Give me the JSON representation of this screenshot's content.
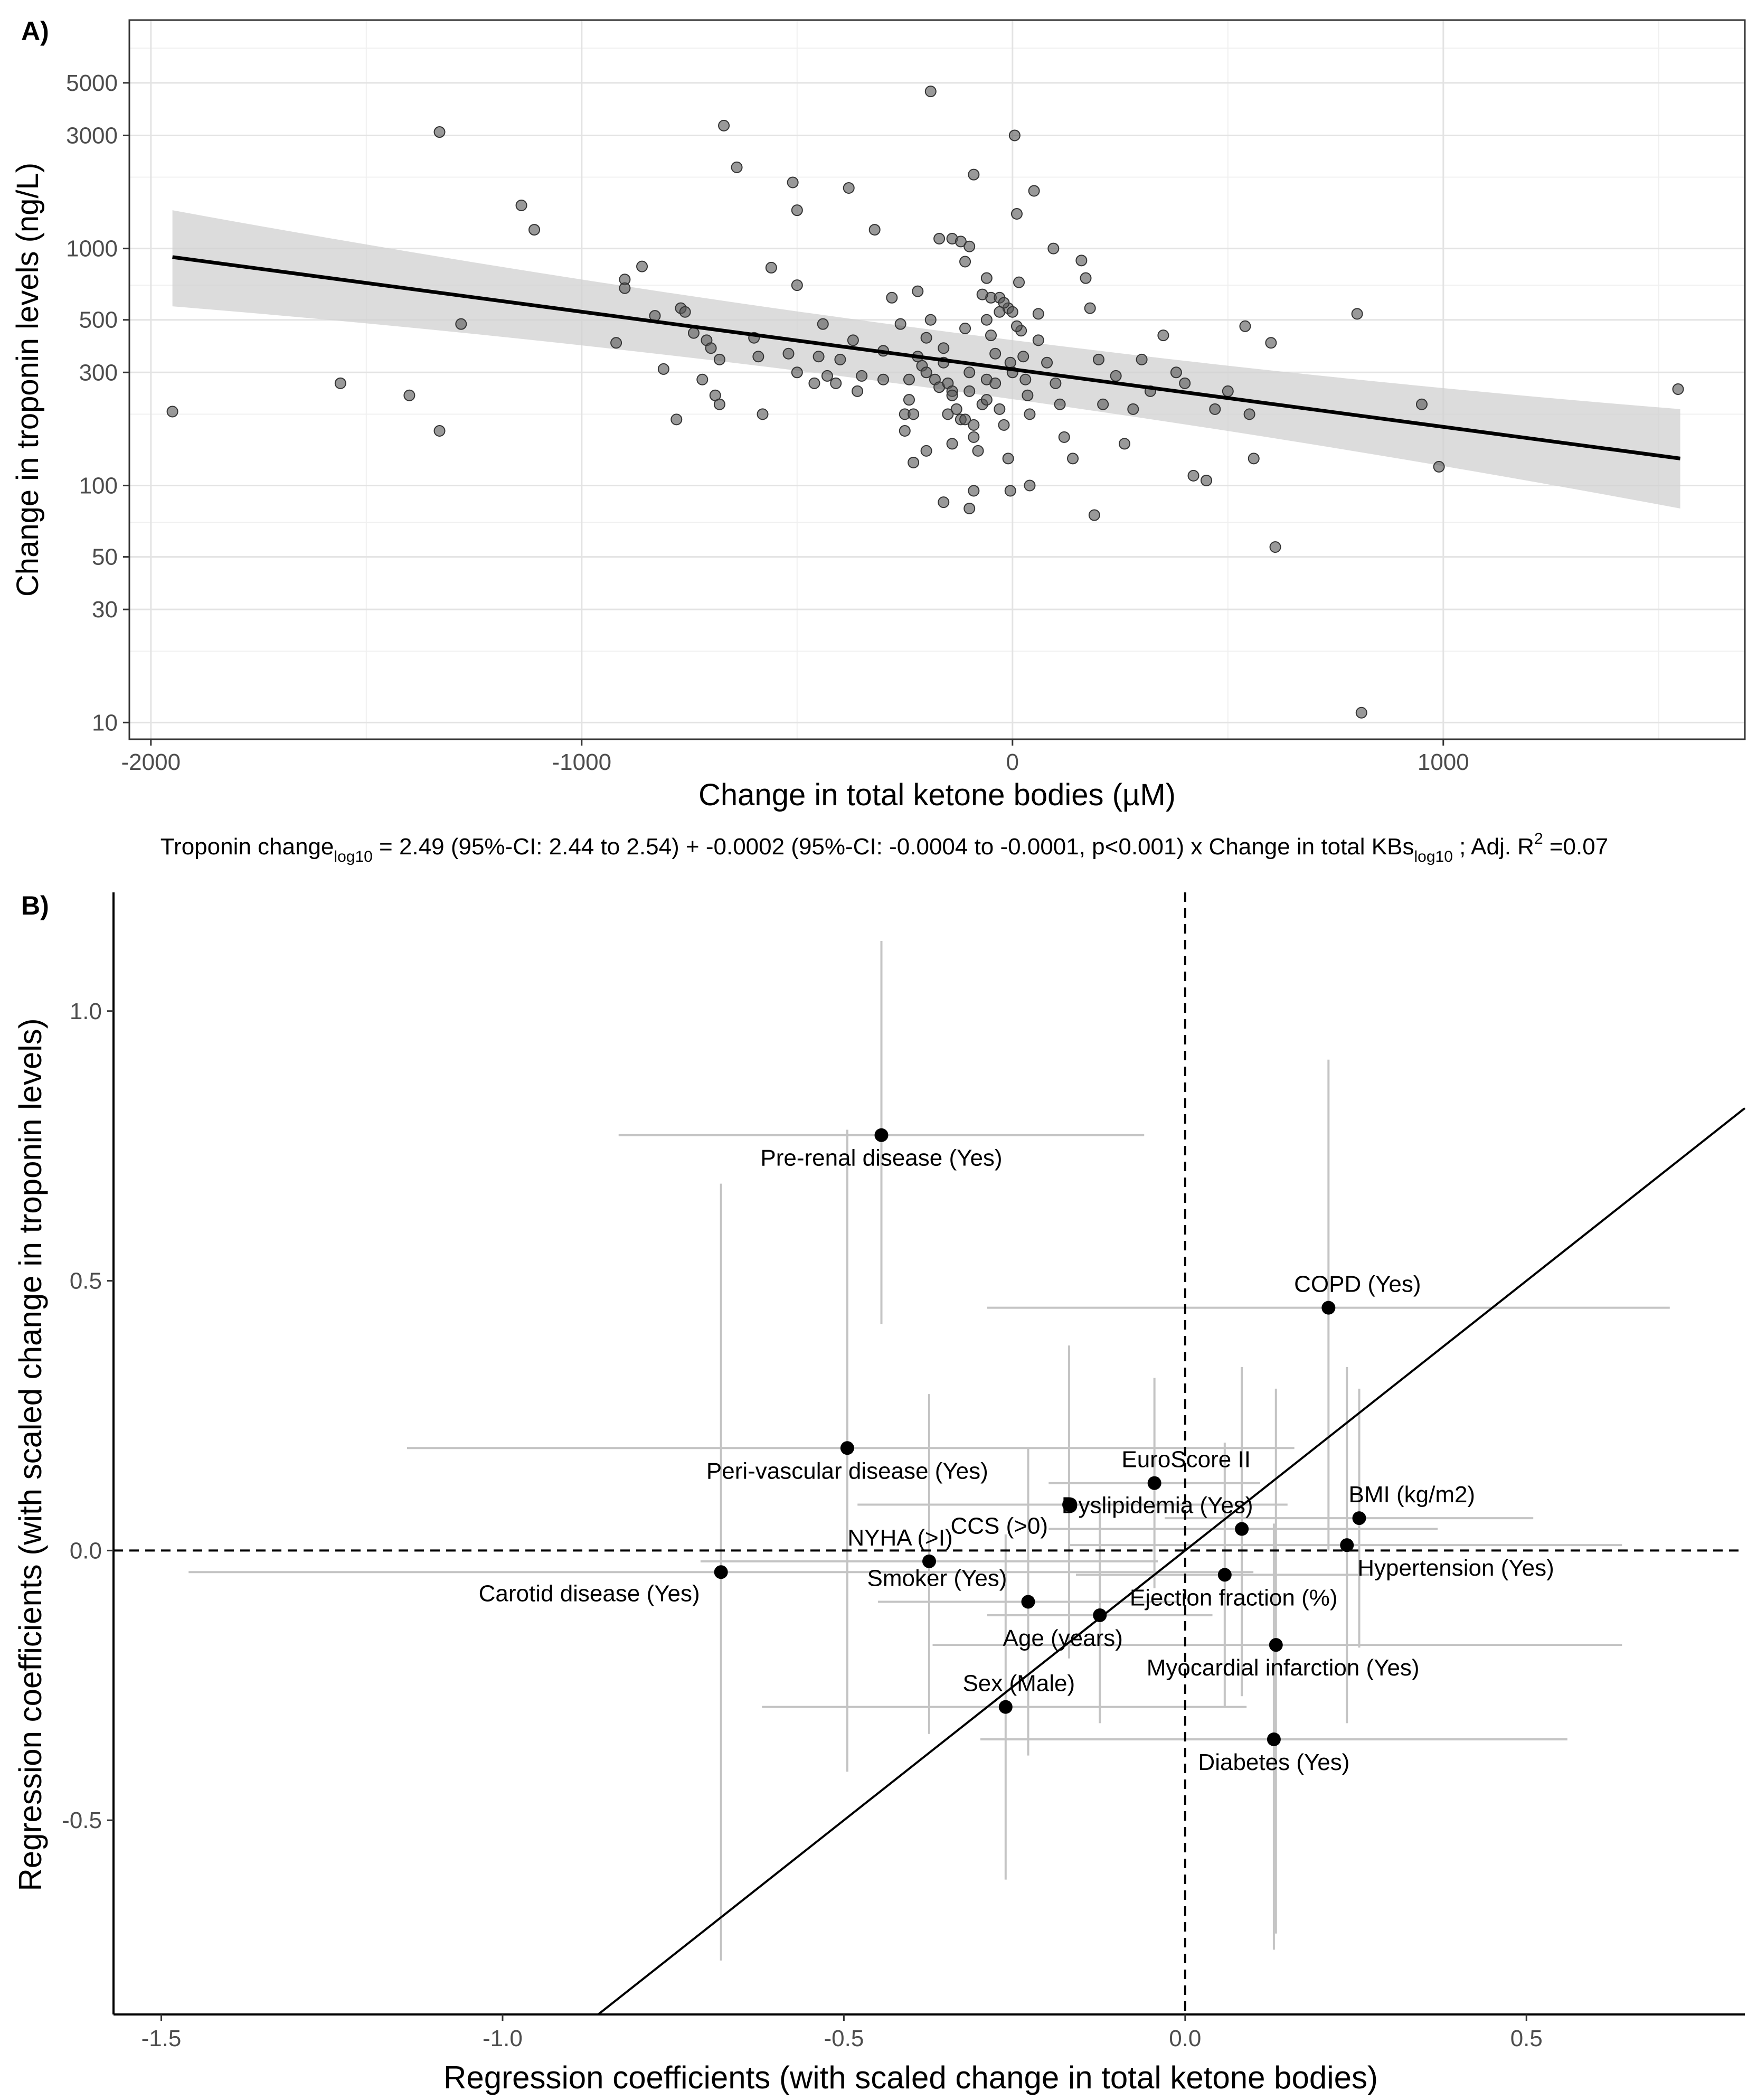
{
  "chart_data": [
    {
      "panel_label": "A)",
      "type": "scatter",
      "xlabel": "Change in total ketone bodies (µM)",
      "ylabel": "Change in troponin levels (ng/L)",
      "y_scale": "log10",
      "xlim": [
        -2050,
        1700
      ],
      "ylim": [
        8.5,
        9200
      ],
      "x_ticks": [
        -2000,
        -1000,
        0,
        1000
      ],
      "x_tick_labels": [
        "-2000",
        "-1000",
        "0",
        "1000"
      ],
      "y_ticks": [
        10,
        30,
        50,
        100,
        300,
        500,
        1000,
        3000,
        5000
      ],
      "y_tick_labels": [
        "10",
        "30",
        "50",
        "100",
        "300",
        "500",
        "1000",
        "3000",
        "5000"
      ],
      "regression": {
        "x": [
          -1950,
          1550
        ],
        "y": [
          920,
          130
        ],
        "ci_lower": [
          570,
          80
        ],
        "ci_upper": [
          1450,
          210
        ]
      },
      "points": [
        [
          -1950,
          205
        ],
        [
          -1400,
          240
        ],
        [
          -1330,
          3100
        ],
        [
          -1330,
          170
        ],
        [
          -1280,
          480
        ],
        [
          -1140,
          1520
        ],
        [
          -1110,
          1200
        ],
        [
          -920,
          400
        ],
        [
          -900,
          740
        ],
        [
          -900,
          680
        ],
        [
          -860,
          840
        ],
        [
          -830,
          520
        ],
        [
          -810,
          310
        ],
        [
          -780,
          190
        ],
        [
          -770,
          560
        ],
        [
          -760,
          540
        ],
        [
          -740,
          440
        ],
        [
          -720,
          280
        ],
        [
          -710,
          410
        ],
        [
          -700,
          380
        ],
        [
          -690,
          240
        ],
        [
          -680,
          220
        ],
        [
          -680,
          340
        ],
        [
          -670,
          3300
        ],
        [
          -640,
          2200
        ],
        [
          -600,
          420
        ],
        [
          -590,
          350
        ],
        [
          -580,
          200
        ],
        [
          -560,
          830
        ],
        [
          -520,
          360
        ],
        [
          -510,
          1900
        ],
        [
          -500,
          1450
        ],
        [
          -500,
          700
        ],
        [
          -500,
          300
        ],
        [
          -460,
          270
        ],
        [
          -450,
          350
        ],
        [
          -440,
          480
        ],
        [
          -430,
          290
        ],
        [
          -410,
          270
        ],
        [
          -400,
          340
        ],
        [
          -380,
          1800
        ],
        [
          -370,
          410
        ],
        [
          -360,
          250
        ],
        [
          -350,
          290
        ],
        [
          -320,
          1200
        ],
        [
          -300,
          370
        ],
        [
          -300,
          280
        ],
        [
          -280,
          620
        ],
        [
          -260,
          480
        ],
        [
          -250,
          200
        ],
        [
          -250,
          170
        ],
        [
          -240,
          280
        ],
        [
          -240,
          230
        ],
        [
          -230,
          200
        ],
        [
          -220,
          660
        ],
        [
          -220,
          350
        ],
        [
          -210,
          320
        ],
        [
          -200,
          300
        ],
        [
          -200,
          140
        ],
        [
          -190,
          4600
        ],
        [
          -190,
          500
        ],
        [
          -180,
          280
        ],
        [
          -170,
          260
        ],
        [
          -160,
          380
        ],
        [
          -160,
          330
        ],
        [
          -150,
          270
        ],
        [
          -140,
          250
        ],
        [
          -140,
          240
        ],
        [
          -130,
          210
        ],
        [
          -120,
          190
        ],
        [
          -110,
          460
        ],
        [
          -100,
          300
        ],
        [
          -100,
          250
        ],
        [
          -90,
          180
        ],
        [
          -90,
          160
        ],
        [
          -80,
          140
        ],
        [
          -70,
          220
        ],
        [
          -60,
          280
        ],
        [
          -60,
          500
        ],
        [
          -50,
          620
        ],
        [
          -50,
          430
        ],
        [
          -40,
          360
        ],
        [
          -40,
          270
        ],
        [
          -30,
          210
        ],
        [
          -20,
          180
        ],
        [
          -10,
          560
        ],
        [
          -5,
          330
        ],
        [
          0,
          300
        ],
        [
          5,
          3000
        ],
        [
          10,
          1400
        ],
        [
          15,
          720
        ],
        [
          20,
          450
        ],
        [
          25,
          350
        ],
        [
          30,
          280
        ],
        [
          35,
          240
        ],
        [
          40,
          200
        ],
        [
          50,
          1750
        ],
        [
          60,
          530
        ],
        [
          80,
          330
        ],
        [
          100,
          270
        ],
        [
          110,
          220
        ],
        [
          120,
          160
        ],
        [
          140,
          130
        ],
        [
          160,
          890
        ],
        [
          170,
          750
        ],
        [
          180,
          560
        ],
        [
          200,
          340
        ],
        [
          210,
          220
        ],
        [
          240,
          290
        ],
        [
          260,
          150
        ],
        [
          280,
          210
        ],
        [
          300,
          340
        ],
        [
          320,
          250
        ],
        [
          350,
          430
        ],
        [
          380,
          300
        ],
        [
          400,
          270
        ],
        [
          420,
          110
        ],
        [
          450,
          105
        ],
        [
          470,
          210
        ],
        [
          500,
          250
        ],
        [
          540,
          470
        ],
        [
          550,
          200
        ],
        [
          560,
          130
        ],
        [
          600,
          400
        ],
        [
          610,
          55
        ],
        [
          800,
          530
        ],
        [
          810,
          11
        ],
        [
          950,
          220
        ],
        [
          990,
          120
        ],
        [
          1545,
          255
        ],
        [
          -1560,
          270
        ],
        [
          -160,
          85
        ],
        [
          -140,
          1100
        ],
        [
          -120,
          1070
        ],
        [
          -110,
          880
        ],
        [
          -100,
          1020
        ],
        [
          -90,
          2050
        ],
        [
          -70,
          640
        ],
        [
          -30,
          620
        ],
        [
          -20,
          590
        ],
        [
          0,
          540
        ],
        [
          10,
          470
        ],
        [
          -10,
          130
        ],
        [
          -5,
          95
        ],
        [
          40,
          100
        ],
        [
          -100,
          80
        ],
        [
          -90,
          95
        ],
        [
          190,
          75
        ],
        [
          95,
          1000
        ],
        [
          -110,
          190
        ],
        [
          -60,
          750
        ],
        [
          -200,
          420
        ],
        [
          -150,
          200
        ],
        [
          -230,
          125
        ],
        [
          -60,
          230
        ],
        [
          -140,
          150
        ],
        [
          -170,
          1100
        ],
        [
          -30,
          540
        ],
        [
          60,
          410
        ]
      ],
      "caption_parts": {
        "p1": "Troponin change",
        "sub1": "log10",
        "p2": " = 2.49 (95%-CI: 2.44 to 2.54) + -0.0002 (95%-CI: -0.0004 to -0.0001, p<0.001) x Change in total KBs",
        "sub2": "log10",
        "p3": " ; Adj. R",
        "sup": "2",
        "p4": " =0.07"
      }
    },
    {
      "panel_label": "B)",
      "type": "scatter",
      "xlabel": "Regression coefficients (with scaled change in total ketone bodies)",
      "ylabel": "Regression coefficients (with scaled change in troponin levels)",
      "xlim": [
        -1.57,
        0.82
      ],
      "ylim": [
        -0.86,
        1.22
      ],
      "x_ticks": [
        -1.5,
        -1.0,
        -0.5,
        0.0,
        0.5
      ],
      "x_tick_labels": [
        "-1.5",
        "-1.0",
        "-0.5",
        "0.0",
        "0.5"
      ],
      "y_ticks": [
        -0.5,
        0.0,
        0.5,
        1.0
      ],
      "y_tick_labels": [
        "-0.5",
        "0.0",
        "0.5",
        "1.0"
      ],
      "identity_line": true,
      "reference_lines": {
        "x": 0,
        "y": 0
      },
      "points": [
        {
          "label": "Pre-renal disease (Yes)",
          "x": -0.445,
          "y": 0.77,
          "x_lo": -0.83,
          "x_hi": -0.06,
          "y_lo": 0.42,
          "y_hi": 1.13,
          "label_pos": "below"
        },
        {
          "label": "COPD (Yes)",
          "x": 0.21,
          "y": 0.45,
          "x_lo": -0.29,
          "x_hi": 0.71,
          "y_lo": 0.0,
          "y_hi": 0.91,
          "label_pos": "above"
        },
        {
          "label": "Peri-vascular disease (Yes)",
          "x": -0.495,
          "y": 0.19,
          "x_lo": -1.14,
          "x_hi": 0.16,
          "y_lo": -0.41,
          "y_hi": 0.78,
          "label_pos": "below"
        },
        {
          "label": "EuroScore II",
          "x": -0.045,
          "y": 0.125,
          "x_lo": -0.2,
          "x_hi": 0.11,
          "y_lo": -0.07,
          "y_hi": 0.32,
          "label_pos": "above"
        },
        {
          "label": "CCS (>0)",
          "x": -0.17,
          "y": 0.085,
          "x_lo": -0.48,
          "x_hi": 0.15,
          "y_lo": -0.2,
          "y_hi": 0.38,
          "label_pos": "below-left"
        },
        {
          "label": "Dyslipidemia (Yes)",
          "x": 0.083,
          "y": 0.04,
          "x_lo": -0.2,
          "x_hi": 0.37,
          "y_lo": -0.27,
          "y_hi": 0.34,
          "label_pos": "above"
        },
        {
          "label": "BMI (kg/m2)",
          "x": 0.255,
          "y": 0.06,
          "x_lo": -0.03,
          "x_hi": 0.51,
          "y_lo": -0.18,
          "y_hi": 0.3,
          "label_pos": "above-right"
        },
        {
          "label": "Hypertension (Yes)",
          "x": 0.237,
          "y": 0.01,
          "x_lo": -0.17,
          "x_hi": 0.64,
          "y_lo": -0.32,
          "y_hi": 0.34,
          "label_pos": "below-right"
        },
        {
          "label": "NYHA (>I)",
          "x": -0.375,
          "y": -0.02,
          "x_lo": -0.71,
          "x_hi": -0.04,
          "y_lo": -0.34,
          "y_hi": 0.29,
          "label_pos": "above"
        },
        {
          "label": "Carotid disease (Yes)",
          "x": -0.68,
          "y": -0.04,
          "x_lo": -1.46,
          "x_hi": 0.1,
          "y_lo": -0.76,
          "y_hi": 0.68,
          "label_pos": "below-left"
        },
        {
          "label": "Ejection fraction (%)",
          "x": 0.058,
          "y": -0.045,
          "x_lo": -0.16,
          "x_hi": 0.27,
          "y_lo": -0.29,
          "y_hi": 0.2,
          "label_pos": "below-right"
        },
        {
          "label": "Smoker (Yes)",
          "x": -0.23,
          "y": -0.095,
          "x_lo": -0.45,
          "x_hi": -0.01,
          "y_lo": -0.38,
          "y_hi": 0.19,
          "label_pos": "above-left"
        },
        {
          "label": "Age (years)",
          "x": -0.125,
          "y": -0.12,
          "x_lo": -0.29,
          "x_hi": 0.04,
          "y_lo": -0.32,
          "y_hi": 0.08,
          "label_pos": "below"
        },
        {
          "label": "Myocardial infarction (Yes)",
          "x": 0.133,
          "y": -0.175,
          "x_lo": -0.37,
          "x_hi": 0.64,
          "y_lo": -0.71,
          "y_hi": 0.3,
          "label_pos": "below-right"
        },
        {
          "label": "Sex (Male)",
          "x": -0.263,
          "y": -0.29,
          "x_lo": -0.62,
          "x_hi": 0.09,
          "y_lo": -0.61,
          "y_hi": 0.03,
          "label_pos": "above"
        },
        {
          "label": "Diabetes (Yes)",
          "x": 0.13,
          "y": -0.35,
          "x_lo": -0.3,
          "x_hi": 0.56,
          "y_lo": -0.74,
          "y_hi": 0.05,
          "label_pos": "below"
        }
      ]
    }
  ]
}
